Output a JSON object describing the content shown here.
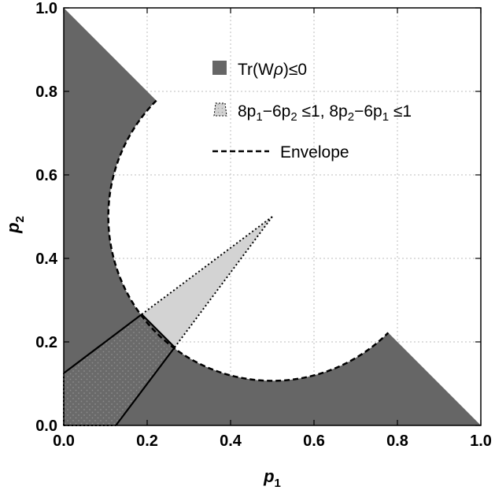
{
  "chart_data": {
    "type": "area",
    "title": "",
    "xlabel": "p",
    "xlabel_sub": "1",
    "ylabel": "p",
    "ylabel_sub": "2",
    "xlim": [
      0,
      1
    ],
    "ylim": [
      0,
      1
    ],
    "xticks": [
      0.0,
      0.2,
      0.4,
      0.6,
      0.8,
      1.0
    ],
    "yticks": [
      0.0,
      0.2,
      0.4,
      0.6,
      0.8,
      1.0
    ],
    "xtick_labels": [
      "0.0",
      "0.2",
      "0.4",
      "0.6",
      "0.8",
      "1.0"
    ],
    "ytick_labels": [
      "0.0",
      "0.2",
      "0.4",
      "0.6",
      "0.8",
      "1.0"
    ],
    "grid": true,
    "legend_placement": "top-right",
    "colors": {
      "witness_region": "#666666",
      "constraint_region": "#d3d3d3",
      "envelope": "#000000"
    },
    "legend": [
      {
        "key": "witness",
        "parts": [
          {
            "t": "Tr(W",
            "sub": false
          },
          {
            "t": "ρ",
            "sub": false,
            "italic": true
          },
          {
            "t": ")≤0",
            "sub": false
          }
        ]
      },
      {
        "key": "constraint",
        "parts": [
          {
            "t": "8p",
            "sub": false
          },
          {
            "t": "1",
            "sub": true
          },
          {
            "t": "−6p",
            "sub": false
          },
          {
            "t": "2",
            "sub": true
          },
          {
            "t": " ≤1, 8p",
            "sub": false
          },
          {
            "t": "2",
            "sub": true
          },
          {
            "t": "−6p",
            "sub": false
          },
          {
            "t": "1",
            "sub": true
          },
          {
            "t": " ≤1",
            "sub": false
          }
        ]
      },
      {
        "key": "envelope",
        "parts": [
          {
            "t": "Envelope",
            "sub": false
          }
        ]
      }
    ],
    "series": [
      {
        "name": "Tr(Wρ)≤0",
        "kind": "filled-region",
        "description_values": {
          "circle_center": [
            0.5,
            0.5
          ],
          "circle_radius": 0.393
        },
        "boundary": [
          [
            0,
            1
          ],
          [
            0.222,
            0.778
          ],
          [
            0.778,
            0.222
          ],
          [
            1,
            0
          ],
          [
            0,
            0
          ]
        ]
      },
      {
        "name": "8p1−6p2 ≤1, 8p2−6p1 ≤1",
        "kind": "filled-region",
        "vertices": [
          [
            0,
            0
          ],
          [
            0.125,
            0
          ],
          [
            0.5,
            0.5
          ],
          [
            0,
            0.125
          ]
        ]
      },
      {
        "name": "Envelope",
        "kind": "dashed-line",
        "arc_from": [
          0.222,
          0.778
        ],
        "arc_to": [
          0.778,
          0.222
        ]
      }
    ],
    "boundary_solid_segments": [
      [
        [
          0,
          0.125
        ],
        [
          0.187,
          0.266
        ]
      ],
      [
        [
          0.125,
          0
        ],
        [
          0.266,
          0.187
        ]
      ],
      [
        [
          0.187,
          0.266
        ],
        [
          0.266,
          0.187
        ]
      ]
    ]
  }
}
